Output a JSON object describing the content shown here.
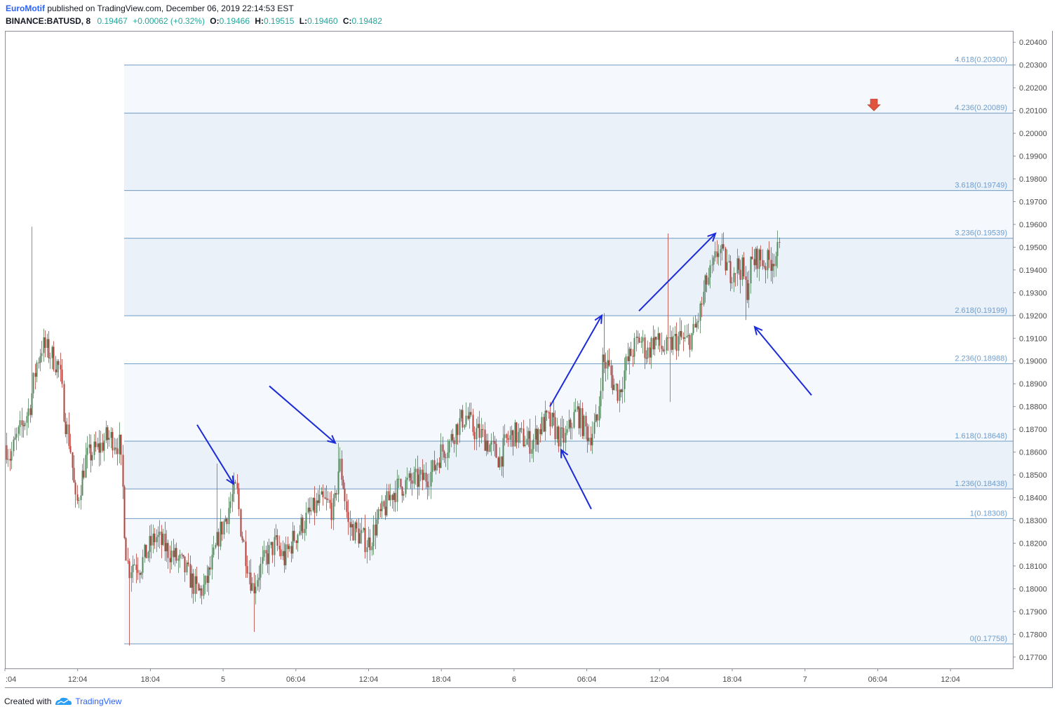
{
  "header": {
    "author": "EuroMotif",
    "published_text": "published on TradingView.com, December 06, 2019 22:14:53 EST",
    "symbol": "BINANCE:BATUSD, 8",
    "last": "0.19467",
    "change": "+0.00062 (+0.32%)",
    "ohlc": [
      {
        "label": "O:",
        "value": "0.19466"
      },
      {
        "label": "H:",
        "value": "0.19515"
      },
      {
        "label": "L:",
        "value": "0.19460"
      },
      {
        "label": "C:",
        "value": "0.19482"
      }
    ]
  },
  "footer": {
    "created_with": "Created with",
    "brand": "TradingView"
  },
  "colors": {
    "up": "#53875e",
    "down": "#b5403a",
    "fib_line": "#6e9bc3",
    "fib_band": "#eef3fa",
    "arrow": "#1c2bd9",
    "marker": "#e0533e"
  },
  "chart_data": {
    "type": "candlestick",
    "symbol": "BINANCE:BATUSD",
    "interval": "8",
    "y_range": [
      0.1765,
      0.2045
    ],
    "y_ticks": [
      "0.20400",
      "0.20300",
      "0.20200",
      "0.20100",
      "0.20000",
      "0.19900",
      "0.19800",
      "0.19700",
      "0.19600",
      "0.19500",
      "0.19400",
      "0.19300",
      "0.19200",
      "0.19100",
      "0.19000",
      "0.18900",
      "0.18800",
      "0.18700",
      "0.18600",
      "0.18500",
      "0.18400",
      "0.18300",
      "0.18200",
      "0.18100",
      "0.18000",
      "0.17900",
      "0.17800",
      "0.17700"
    ],
    "x_ticks": [
      ":04",
      "12:04",
      "18:04",
      "5",
      "06:04",
      "12:04",
      "18:04",
      "6",
      "06:04",
      "12:04",
      "18:04",
      "7",
      "06:04",
      "12:04"
    ],
    "fib_levels": [
      {
        "label": "0(0.17758)",
        "value": 0.17758
      },
      {
        "label": "1(0.18308)",
        "value": 0.18308
      },
      {
        "label": "1.236(0.18438)",
        "value": 0.18438
      },
      {
        "label": "1.618(0.18648)",
        "value": 0.18648
      },
      {
        "label": "2.236(0.18988)",
        "value": 0.18988
      },
      {
        "label": "2.618(0.19199)",
        "value": 0.19199
      },
      {
        "label": "3.236(0.19539)",
        "value": 0.19539
      },
      {
        "label": "3.618(0.19749)",
        "value": 0.19749
      },
      {
        "label": "4.236(0.20089)",
        "value": 0.20089
      },
      {
        "label": "4.618(0.20300)",
        "value": 0.203
      }
    ],
    "price_path": [
      [
        0,
        0.1881
      ],
      [
        8,
        0.1863
      ],
      [
        14,
        0.1858
      ],
      [
        22,
        0.1865
      ],
      [
        32,
        0.1872
      ],
      [
        42,
        0.188
      ],
      [
        52,
        0.1899
      ],
      [
        60,
        0.1907
      ],
      [
        72,
        0.1903
      ],
      [
        84,
        0.1897
      ],
      [
        92,
        0.1875
      ],
      [
        100,
        0.1862
      ],
      [
        108,
        0.1835
      ],
      [
        114,
        0.1845
      ],
      [
        122,
        0.1857
      ],
      [
        132,
        0.186
      ],
      [
        142,
        0.1862
      ],
      [
        150,
        0.1866
      ],
      [
        160,
        0.1866
      ],
      [
        170,
        0.1863
      ],
      [
        175,
        0.1842
      ],
      [
        178,
        0.182
      ],
      [
        183,
        0.1808
      ],
      [
        190,
        0.1812
      ],
      [
        200,
        0.181
      ],
      [
        212,
        0.1818
      ],
      [
        222,
        0.1823
      ],
      [
        232,
        0.1819
      ],
      [
        245,
        0.1815
      ],
      [
        258,
        0.1811
      ],
      [
        270,
        0.1805
      ],
      [
        282,
        0.1798
      ],
      [
        292,
        0.1801
      ],
      [
        303,
        0.1812
      ],
      [
        312,
        0.1824
      ],
      [
        320,
        0.183
      ],
      [
        330,
        0.184
      ],
      [
        337,
        0.1844
      ],
      [
        343,
        0.1826
      ],
      [
        352,
        0.1812
      ],
      [
        360,
        0.18
      ],
      [
        368,
        0.1807
      ],
      [
        380,
        0.1814
      ],
      [
        392,
        0.182
      ],
      [
        405,
        0.1813
      ],
      [
        418,
        0.1822
      ],
      [
        430,
        0.1828
      ],
      [
        442,
        0.1833
      ],
      [
        455,
        0.1838
      ],
      [
        468,
        0.1837
      ],
      [
        476,
        0.1834
      ],
      [
        483,
        0.1856
      ],
      [
        489,
        0.1846
      ],
      [
        496,
        0.1828
      ],
      [
        504,
        0.1826
      ],
      [
        516,
        0.1822
      ],
      [
        526,
        0.182
      ],
      [
        538,
        0.183
      ],
      [
        548,
        0.1835
      ],
      [
        558,
        0.1842
      ],
      [
        570,
        0.1845
      ],
      [
        585,
        0.1847
      ],
      [
        600,
        0.1848
      ],
      [
        615,
        0.1851
      ],
      [
        628,
        0.186
      ],
      [
        640,
        0.1864
      ],
      [
        652,
        0.1872
      ],
      [
        664,
        0.1876
      ],
      [
        674,
        0.187
      ],
      [
        688,
        0.1867
      ],
      [
        700,
        0.1862
      ],
      [
        712,
        0.1857
      ],
      [
        722,
        0.1865
      ],
      [
        732,
        0.1868
      ],
      [
        745,
        0.1866
      ],
      [
        758,
        0.1864
      ],
      [
        768,
        0.187
      ],
      [
        778,
        0.1874
      ],
      [
        788,
        0.1872
      ],
      [
        798,
        0.1866
      ],
      [
        806,
        0.1866
      ],
      [
        814,
        0.1873
      ],
      [
        822,
        0.1878
      ],
      [
        830,
        0.1872
      ],
      [
        840,
        0.1867
      ],
      [
        852,
        0.1874
      ],
      [
        858,
        0.19
      ],
      [
        866,
        0.1898
      ],
      [
        874,
        0.189
      ],
      [
        882,
        0.1886
      ],
      [
        892,
        0.1898
      ],
      [
        902,
        0.1905
      ],
      [
        912,
        0.191
      ],
      [
        922,
        0.1903
      ],
      [
        932,
        0.191
      ],
      [
        942,
        0.1906
      ],
      [
        950,
        0.1905
      ],
      [
        958,
        0.1908
      ],
      [
        968,
        0.191
      ],
      [
        978,
        0.1908
      ],
      [
        990,
        0.1913
      ],
      [
        998,
        0.1922
      ],
      [
        1006,
        0.1934
      ],
      [
        1016,
        0.194
      ],
      [
        1024,
        0.195
      ],
      [
        1032,
        0.1944
      ],
      [
        1040,
        0.1939
      ],
      [
        1050,
        0.1942
      ],
      [
        1058,
        0.194
      ],
      [
        1064,
        0.193
      ],
      [
        1070,
        0.1942
      ],
      [
        1080,
        0.1946
      ],
      [
        1090,
        0.1943
      ],
      [
        1098,
        0.1944
      ],
      [
        1106,
        0.1947
      ],
      [
        1112,
        0.1948
      ]
    ],
    "spikes": [
      [
        45,
        0.1959
      ],
      [
        185,
        0.1775
      ],
      [
        308,
        0.1855
      ],
      [
        362,
        0.1781
      ],
      [
        482,
        0.1864
      ],
      [
        860,
        0.1921
      ],
      [
        952,
        0.1956
      ],
      [
        955,
        0.1882
      ],
      [
        1028,
        0.1956
      ],
      [
        1063,
        0.1918
      ]
    ],
    "annotation_arrows": [
      {
        "from": [
          281,
          0.1872
        ],
        "to": [
          333,
          0.1846
        ]
      },
      {
        "from": [
          384,
          0.1889
        ],
        "to": [
          478,
          0.1864
        ]
      },
      {
        "from": [
          784,
          0.188
        ],
        "to": [
          858,
          0.192
        ]
      },
      {
        "from": [
          911,
          0.1922
        ],
        "to": [
          1020,
          0.1956
        ]
      },
      {
        "from": [
          843,
          0.1835
        ],
        "to": [
          800,
          0.1861
        ]
      },
      {
        "from": [
          1157,
          0.1885
        ],
        "to": [
          1076,
          0.1915
        ]
      }
    ],
    "marker_down": {
      "x": 1246,
      "value": 0.2012
    }
  }
}
